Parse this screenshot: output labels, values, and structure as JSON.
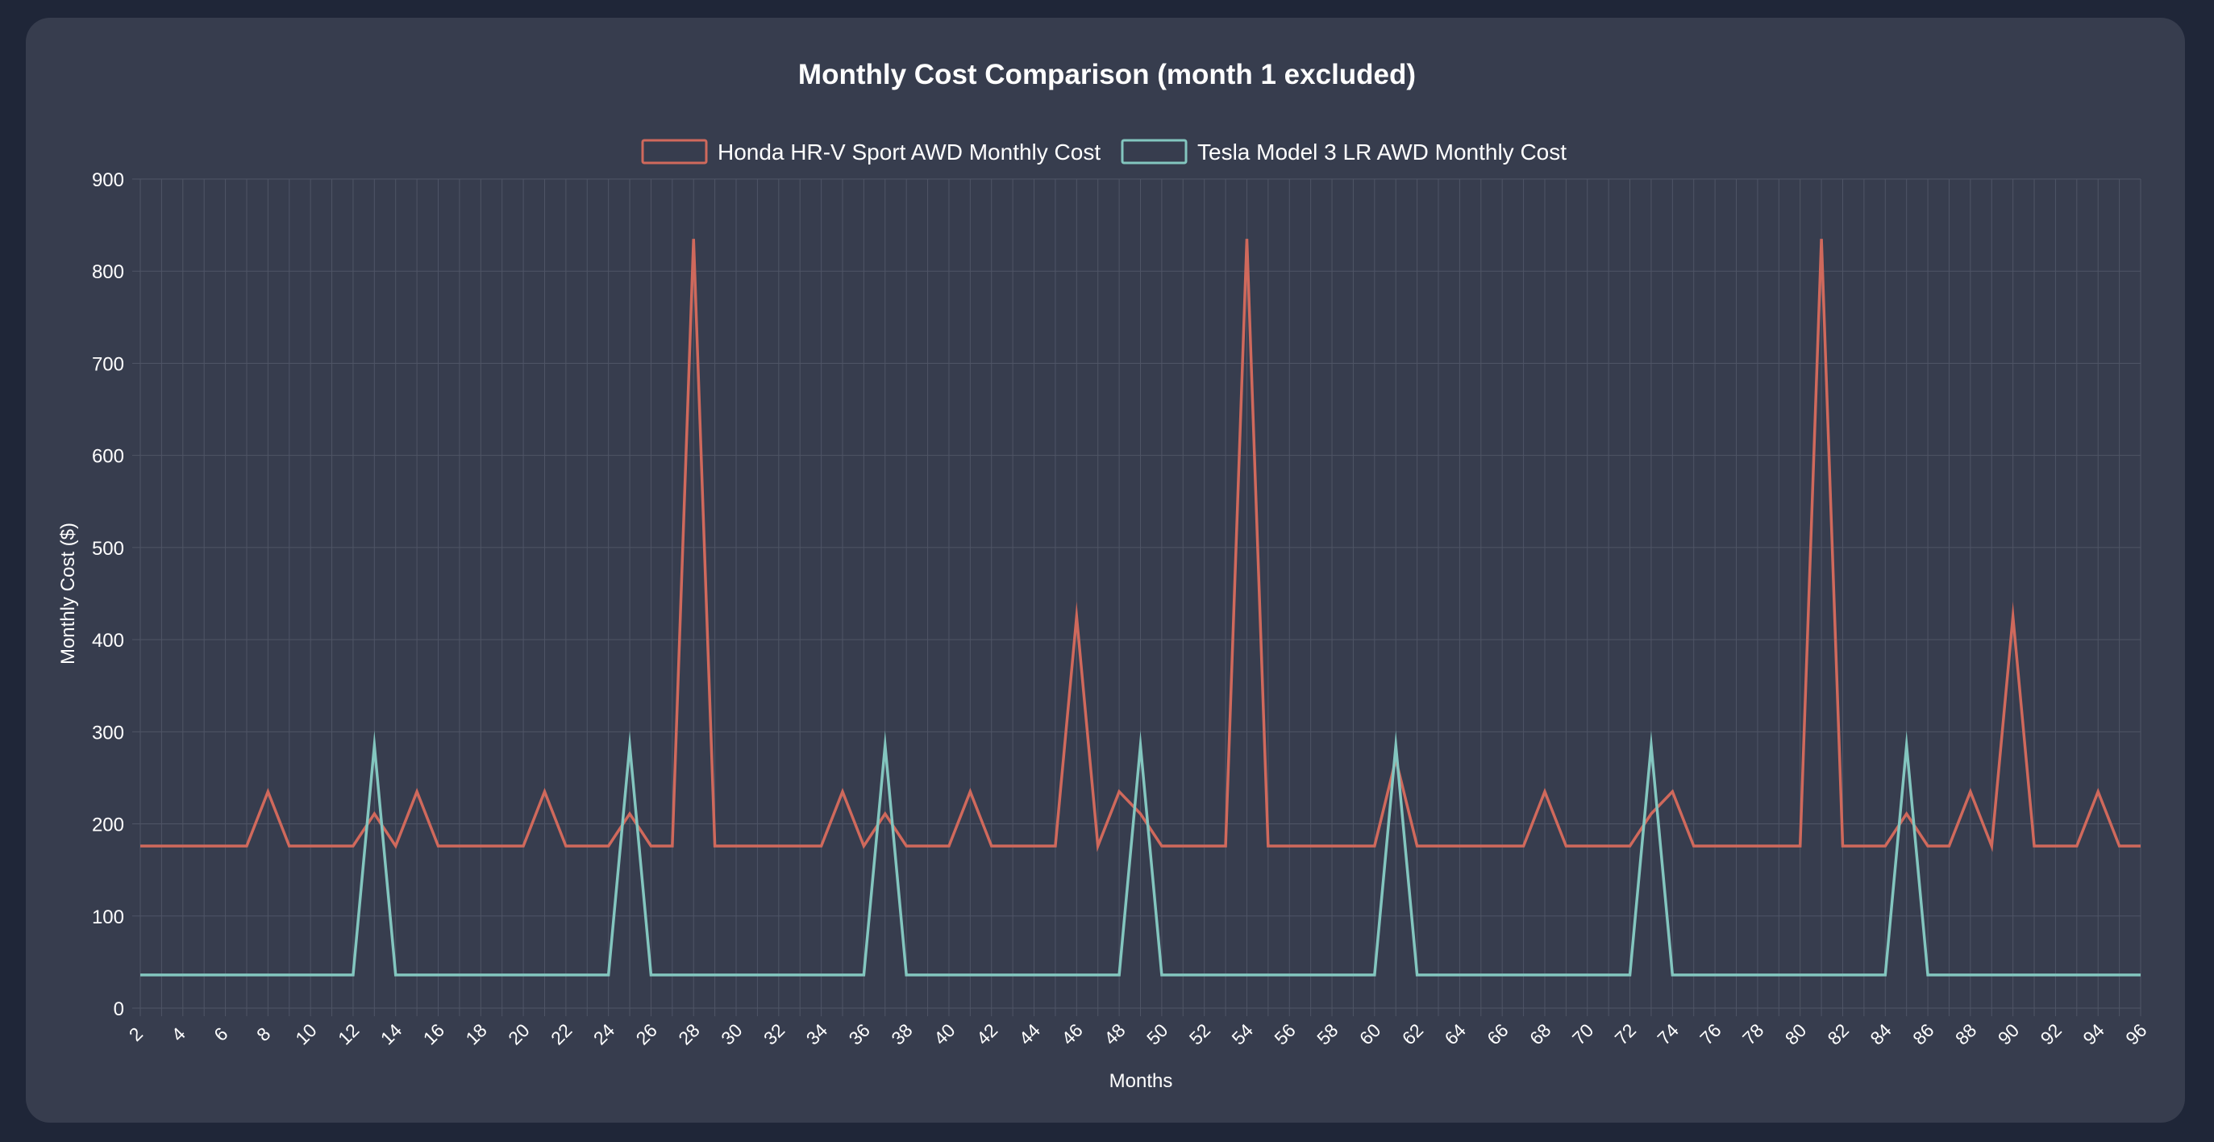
{
  "colors": {
    "honda": "#d0695c",
    "tesla": "#83c6bf",
    "background": "#1f2638",
    "card": "#373d4e",
    "grid": "#4f5566",
    "text": "#ffffff"
  },
  "chart_data": {
    "type": "line",
    "title": "Monthly Cost Comparison (month 1 excluded)",
    "xlabel": "Months",
    "ylabel": "Monthly Cost ($)",
    "ylim": [
      0,
      900
    ],
    "yticks": [
      0,
      100,
      200,
      300,
      400,
      500,
      600,
      700,
      800,
      900
    ],
    "grid": true,
    "legend_position": "top-center",
    "x": [
      2,
      3,
      4,
      5,
      6,
      7,
      8,
      9,
      10,
      11,
      12,
      13,
      14,
      15,
      16,
      17,
      18,
      19,
      20,
      21,
      22,
      23,
      24,
      25,
      26,
      27,
      28,
      29,
      30,
      31,
      32,
      33,
      34,
      35,
      36,
      37,
      38,
      39,
      40,
      41,
      42,
      43,
      44,
      45,
      46,
      47,
      48,
      49,
      50,
      51,
      52,
      53,
      54,
      55,
      56,
      57,
      58,
      59,
      60,
      61,
      62,
      63,
      64,
      65,
      66,
      67,
      68,
      69,
      70,
      71,
      72,
      73,
      74,
      75,
      76,
      77,
      78,
      79,
      80,
      81,
      82,
      83,
      84,
      85,
      86,
      87,
      88,
      89,
      90,
      91,
      92,
      93,
      94,
      95,
      96
    ],
    "x_tick_labels": [
      "2",
      "4",
      "6",
      "8",
      "10",
      "12",
      "14",
      "16",
      "18",
      "20",
      "22",
      "24",
      "26",
      "28",
      "30",
      "32",
      "34",
      "36",
      "38",
      "40",
      "42",
      "44",
      "46",
      "48",
      "50",
      "52",
      "54",
      "56",
      "58",
      "60",
      "62",
      "64",
      "66",
      "68",
      "70",
      "72",
      "74",
      "76",
      "78",
      "80",
      "82",
      "84",
      "86",
      "88",
      "90",
      "92",
      "94",
      "96"
    ],
    "series": [
      {
        "name": "Honda HR-V Sport AWD Monthly Cost",
        "color": "#d0695c",
        "values": [
          176,
          176,
          176,
          176,
          176,
          176,
          235,
          176,
          176,
          176,
          176,
          211,
          176,
          235,
          176,
          176,
          176,
          176,
          176,
          235,
          176,
          176,
          176,
          211,
          176,
          176,
          835,
          176,
          176,
          176,
          176,
          176,
          176,
          235,
          176,
          211,
          176,
          176,
          176,
          235,
          176,
          176,
          176,
          176,
          425,
          176,
          235,
          211,
          176,
          176,
          176,
          176,
          835,
          176,
          176,
          176,
          176,
          176,
          176,
          270,
          176,
          176,
          176,
          176,
          176,
          176,
          235,
          176,
          176,
          176,
          176,
          211,
          235,
          176,
          176,
          176,
          176,
          176,
          176,
          835,
          176,
          176,
          176,
          211,
          176,
          176,
          235,
          176,
          425,
          176,
          176,
          176,
          235,
          176,
          176
        ]
      },
      {
        "name": "Tesla Model 3 LR AWD Monthly Cost",
        "color": "#83c6bf",
        "values": [
          36,
          36,
          36,
          36,
          36,
          36,
          36,
          36,
          36,
          36,
          36,
          285,
          36,
          36,
          36,
          36,
          36,
          36,
          36,
          36,
          36,
          36,
          36,
          285,
          36,
          36,
          36,
          36,
          36,
          36,
          36,
          36,
          36,
          36,
          36,
          285,
          36,
          36,
          36,
          36,
          36,
          36,
          36,
          36,
          36,
          36,
          36,
          285,
          36,
          36,
          36,
          36,
          36,
          36,
          36,
          36,
          36,
          36,
          36,
          285,
          36,
          36,
          36,
          36,
          36,
          36,
          36,
          36,
          36,
          36,
          36,
          285,
          36,
          36,
          36,
          36,
          36,
          36,
          36,
          36,
          36,
          36,
          36,
          285,
          36,
          36,
          36,
          36,
          36,
          36,
          36,
          36,
          36,
          36,
          36
        ]
      }
    ]
  }
}
